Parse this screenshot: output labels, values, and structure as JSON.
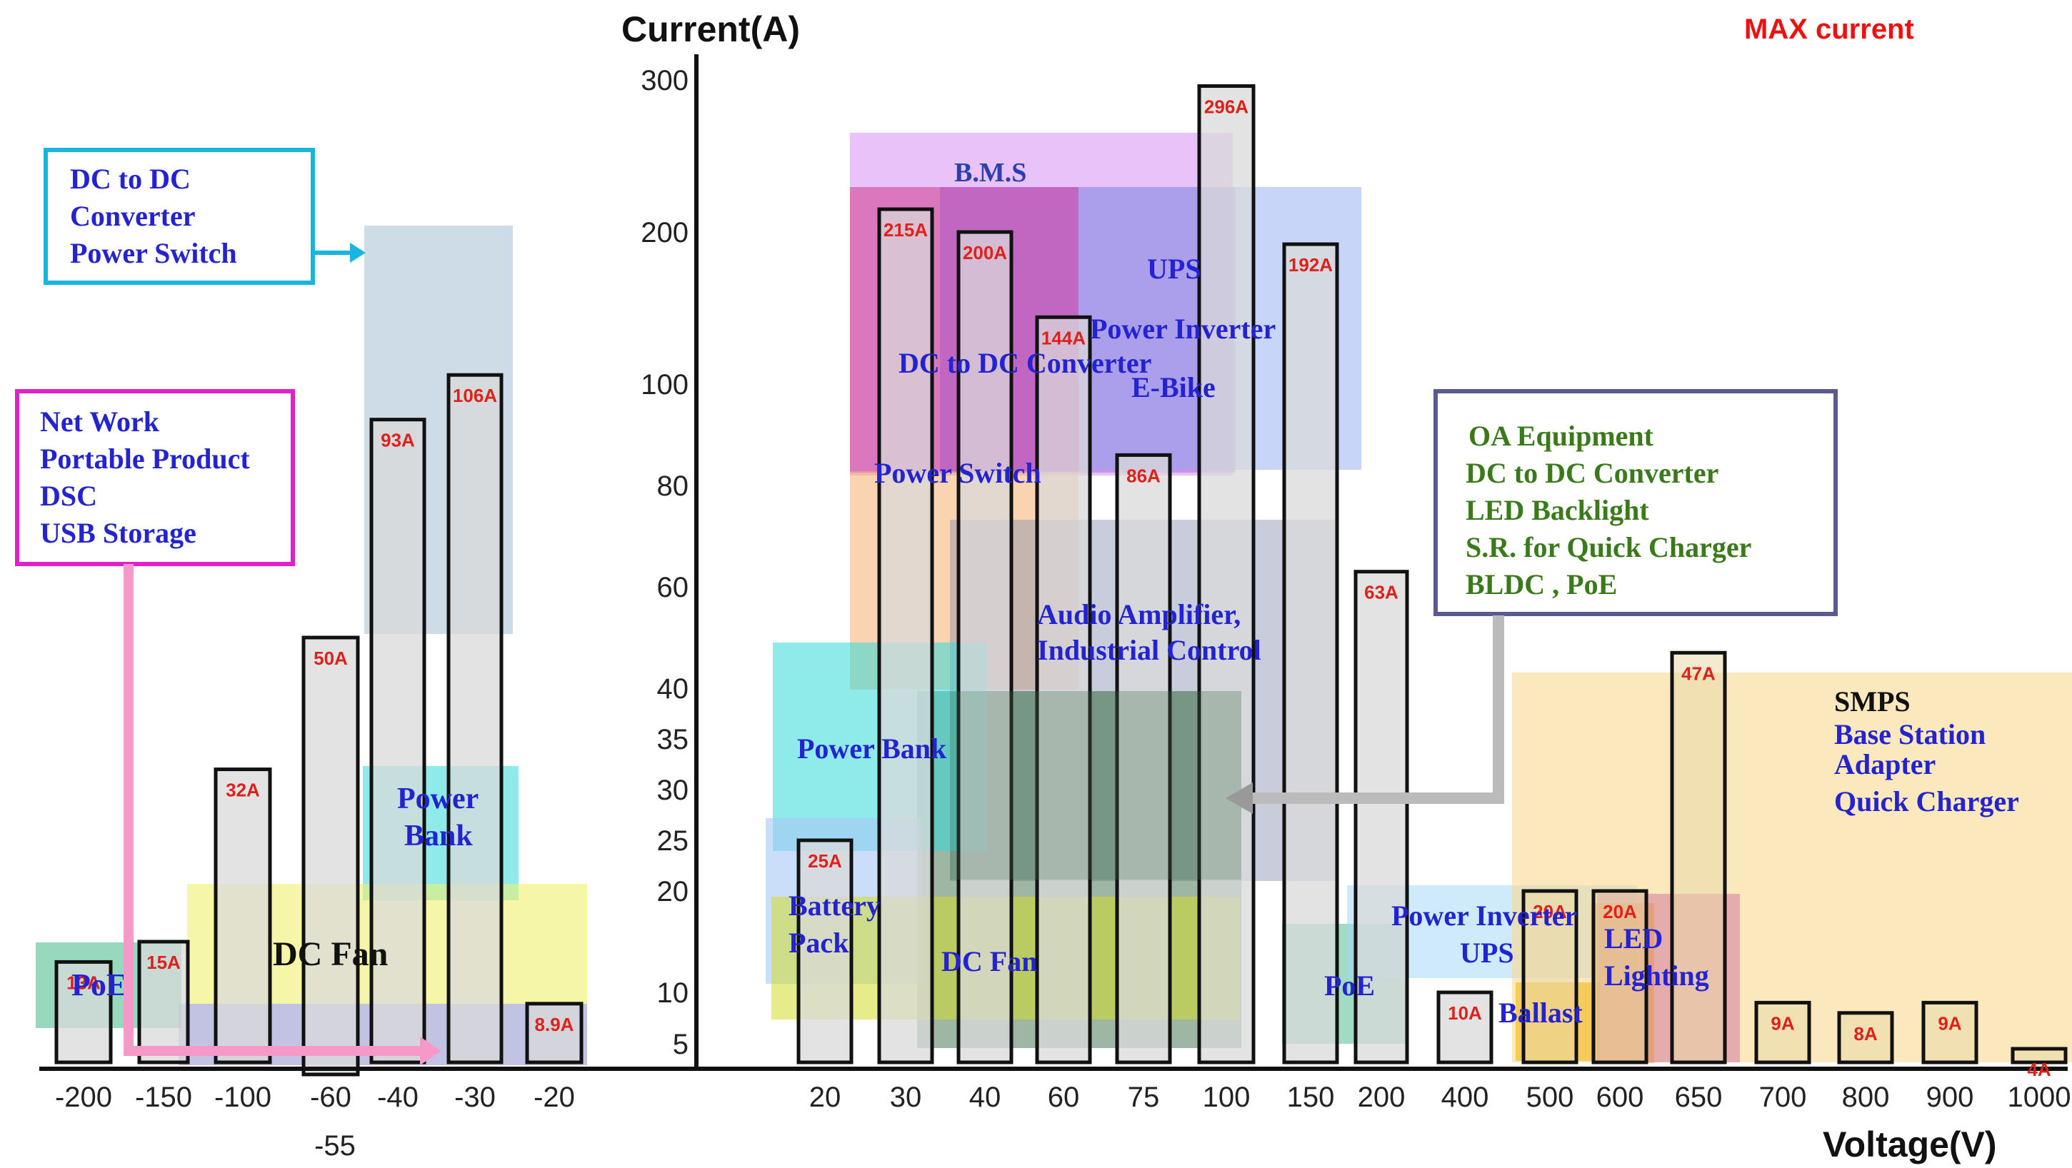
{
  "chart_data": {
    "type": "bar",
    "ylabel": "Current(A)",
    "xlabel": "Voltage(V)",
    "legend_note": "MAX current",
    "y_ticks": [
      "5",
      "10",
      "20",
      "25",
      "30",
      "35",
      "40",
      "60",
      "80",
      "100",
      "200",
      "300"
    ],
    "x_ticks": [
      "-200",
      "-150",
      "-100",
      "-60",
      "-55",
      "-40",
      "-30",
      "-20",
      "20",
      "30",
      "40",
      "60",
      "75",
      "100",
      "150",
      "200",
      "400",
      "500",
      "600",
      "650",
      "700",
      "800",
      "900",
      "1000"
    ],
    "bars": [
      {
        "x": "-200",
        "value": 13,
        "label": "13A"
      },
      {
        "x": "-150",
        "value": 15,
        "label": "15A"
      },
      {
        "x": "-100",
        "value": 32,
        "label": "32A"
      },
      {
        "x": "-60",
        "value": 50,
        "label": "50A"
      },
      {
        "x": "-40",
        "value": 93,
        "label": "93A"
      },
      {
        "x": "-30",
        "value": 106,
        "label": "106A"
      },
      {
        "x": "-20",
        "value": 8.9,
        "label": "8.9A"
      },
      {
        "x": "20",
        "value": 25,
        "label": "25A"
      },
      {
        "x": "30",
        "value": 215,
        "label": "215A"
      },
      {
        "x": "40",
        "value": 200,
        "label": "200A"
      },
      {
        "x": "60",
        "value": 144,
        "label": "144A"
      },
      {
        "x": "75",
        "value": 86,
        "label": "86A"
      },
      {
        "x": "100",
        "value": 296,
        "label": "296A"
      },
      {
        "x": "150",
        "value": 192,
        "label": "192A"
      },
      {
        "x": "200",
        "value": 63,
        "label": "63A"
      },
      {
        "x": "400",
        "value": 10,
        "label": "10A"
      },
      {
        "x": "500",
        "value": 20,
        "label": "20A"
      },
      {
        "x": "600",
        "value": 20,
        "label": "20A"
      },
      {
        "x": "650",
        "value": 47,
        "label": "47A"
      },
      {
        "x": "700",
        "value": 9,
        "label": "9A"
      },
      {
        "x": "800",
        "value": 8,
        "label": "8A"
      },
      {
        "x": "900",
        "value": 9,
        "label": "9A"
      },
      {
        "x": "1000",
        "value": 4,
        "label": "4A"
      }
    ],
    "regions": [
      {
        "label": "B.M.S",
        "color": "#cc77f0"
      },
      {
        "label": "DC to DC Converter",
        "color": "#d03a8a"
      },
      {
        "label": "Power Switch",
        "color": "#f5b070"
      },
      {
        "label": "UPS",
        "color": "#8aaaf0"
      },
      {
        "label": "Power Inverter",
        "color": "#8aaaf0"
      },
      {
        "label": "E-Bike",
        "color": "#8aaaf0"
      },
      {
        "label": "Audio Amplifier,",
        "color": "#8890b0"
      },
      {
        "label": "Industrial  Control",
        "color": "#8890b0"
      },
      {
        "label": "Power Bank",
        "color": "#33d9d9"
      },
      {
        "label": "Battery",
        "color": "#a8c8f5"
      },
      {
        "label": "Pack",
        "color": "#a8c8f5"
      },
      {
        "label": "DC Fan",
        "color": "#d2dd2a"
      },
      {
        "label": "PoE",
        "color": "#44b888"
      },
      {
        "label": "Power Inverter",
        "color": "#a8d8f5"
      },
      {
        "label": "UPS",
        "color": "#a8d8f5"
      },
      {
        "label": "Ballast",
        "color": "#f5c23a"
      },
      {
        "label": "LED",
        "color": "#d27aa0"
      },
      {
        "label": "Lighting",
        "color": "#d27aa0"
      },
      {
        "label": "SMPS",
        "color": "#f8d890"
      },
      {
        "label": "Base Station",
        "color": "#f8d890"
      },
      {
        "label": "Adapter",
        "color": "#f8d890"
      },
      {
        "label": "Quick Charger",
        "color": "#f8d890"
      }
    ],
    "callouts": [
      {
        "lines": [
          "DC to DC",
          "Converter",
          "Power Switch"
        ],
        "color": "#1ab4e0"
      },
      {
        "lines": [
          "Net Work",
          "Portable Product",
          "DSC",
          "USB Storage"
        ],
        "color": "#e020c8"
      },
      {
        "lines": [
          "OA Equipment",
          "DC to DC Converter",
          "LED Backlight",
          "S.R.  for Quick Charger",
          "BLDC , PoE"
        ],
        "color": "#5a5a90"
      }
    ],
    "left_regions": [
      {
        "label": "Power",
        "color": "#33d9d9"
      },
      {
        "label": "Bank",
        "color": "#33d9d9"
      },
      {
        "label": "DC Fan",
        "color": "#f0f070"
      },
      {
        "label": "PoE",
        "color": "#44b888"
      }
    ]
  }
}
